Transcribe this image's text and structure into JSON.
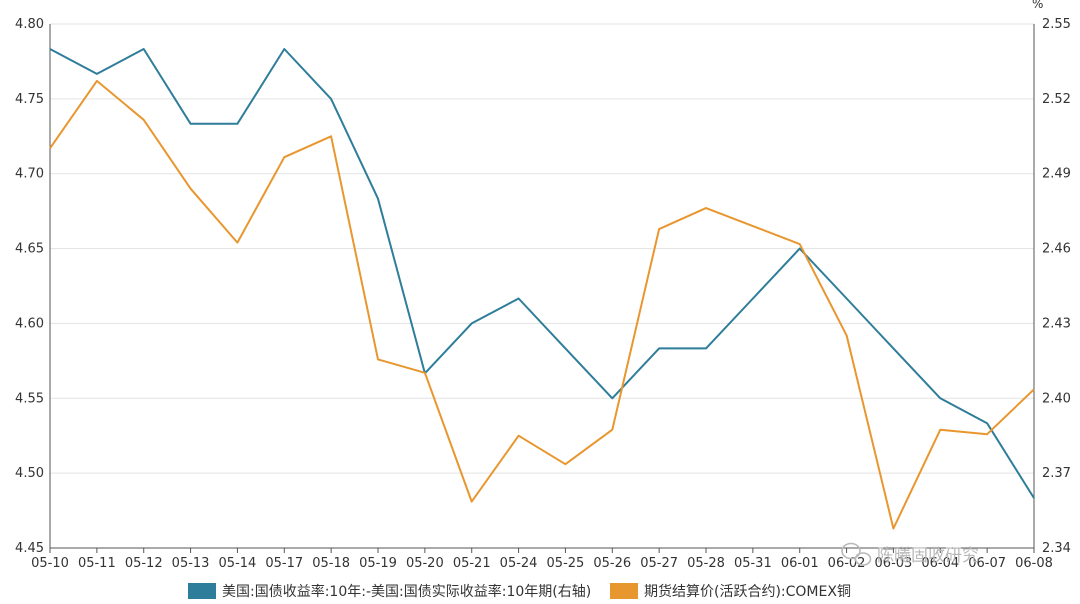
{
  "chart_data": {
    "type": "line",
    "title": "",
    "categories": [
      "05-10",
      "05-11",
      "05-12",
      "05-13",
      "05-14",
      "05-17",
      "05-18",
      "05-19",
      "05-20",
      "05-21",
      "05-24",
      "05-25",
      "05-26",
      "05-27",
      "05-28",
      "05-31",
      "06-01",
      "06-02",
      "06-03",
      "06-04",
      "06-07",
      "06-08"
    ],
    "x_tick_labels": [
      "05-10",
      "05-11",
      "05-12",
      "05-13",
      "05-14",
      "05-17",
      "05-18",
      "05-19",
      "05-20",
      "05-21",
      "05-24",
      "05-25",
      "05-26",
      "05-27",
      "05-28",
      "05-31",
      "06-01",
      "06-02",
      "06-03",
      "06-04",
      "06-07",
      "06-08"
    ],
    "left_axis": {
      "ylim": [
        4.45,
        4.8
      ],
      "ticks": [
        "4.45",
        "4.50",
        "4.55",
        "4.60",
        "4.65",
        "4.70",
        "4.75",
        "4.80"
      ]
    },
    "right_axis": {
      "ylim": [
        2.34,
        2.55
      ],
      "ticks": [
        "2.34",
        "2.37",
        "2.40",
        "2.43",
        "2.46",
        "2.49",
        "2.52",
        "2.55"
      ],
      "unit": "%"
    },
    "grid": true,
    "legend_position": "bottom-center",
    "series": [
      {
        "name": "美国:国债收益率:10年:-美国:国债实际收益率:10年期(右轴)",
        "axis": "right",
        "color": "#2e7d9a",
        "values": [
          2.54,
          2.53,
          2.54,
          2.51,
          2.51,
          2.54,
          2.52,
          2.48,
          2.41,
          2.43,
          2.44,
          2.42,
          2.4,
          2.42,
          2.42,
          2.44,
          2.46,
          2.44,
          2.42,
          2.4,
          2.39,
          2.36
        ]
      },
      {
        "name": "期货结算价(活跃合约):COMEX铜",
        "axis": "left",
        "color": "#e8962e",
        "values": [
          4.717,
          4.762,
          4.736,
          4.69,
          4.654,
          4.711,
          4.725,
          4.576,
          4.567,
          4.481,
          4.525,
          4.506,
          4.529,
          4.663,
          4.677,
          4.665,
          4.653,
          4.592,
          4.463,
          4.529,
          4.526,
          4.556
        ]
      }
    ]
  },
  "watermark": {
    "text": "陈曦固收研究",
    "icon": "wechat-icon"
  }
}
